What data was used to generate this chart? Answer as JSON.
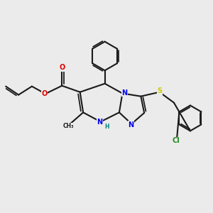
{
  "bg_color": "#ebebeb",
  "bond_color": "#1a1a1a",
  "bond_lw": 1.5,
  "atom_colors": {
    "N": "#0000ee",
    "O": "#dd0000",
    "S": "#cccc00",
    "Cl": "#228b22",
    "H": "#008080",
    "C": "#1a1a1a"
  },
  "fs": 8.5,
  "fss": 7.0
}
